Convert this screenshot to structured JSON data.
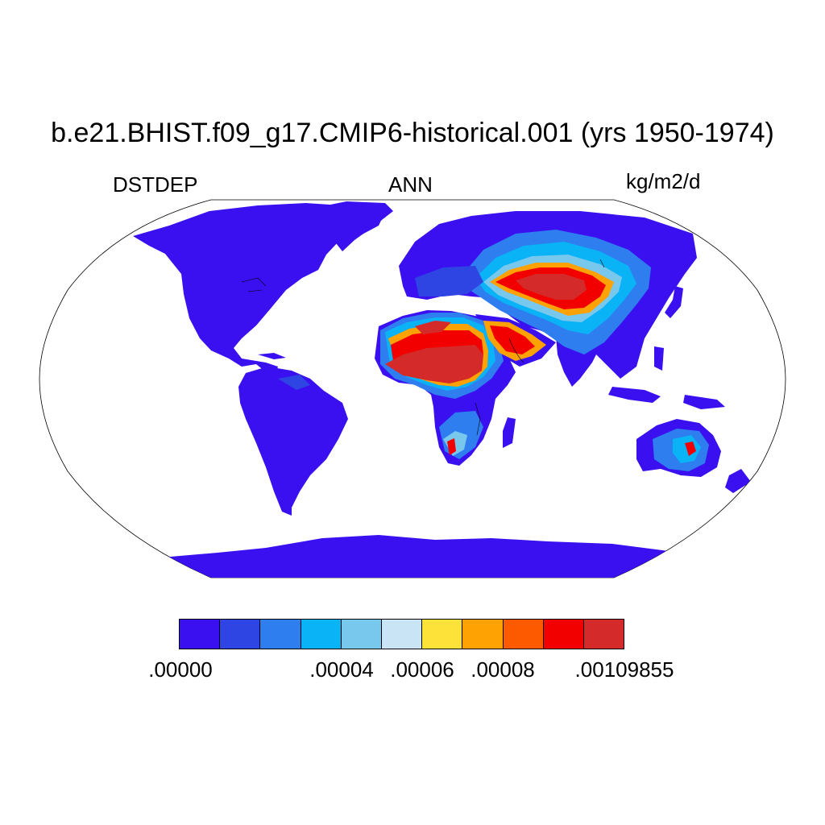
{
  "title": "b.e21.BHIST.f09_g17.CMIP6-historical.001 (yrs 1950-1974)",
  "variable": "DSTDEP",
  "season": "ANN",
  "units": "kg/m2/d",
  "colorbar": {
    "colors": [
      "#3a10f0",
      "#2f45e3",
      "#2f7ef0",
      "#0ab2f6",
      "#78c8ee",
      "#c8e4f5",
      "#fde23a",
      "#fda202",
      "#fd5a00",
      "#f20000",
      "#d42a2a"
    ],
    "labels": [
      ".00000",
      ".00004",
      ".00006",
      ".00008",
      ".00109855"
    ]
  }
}
